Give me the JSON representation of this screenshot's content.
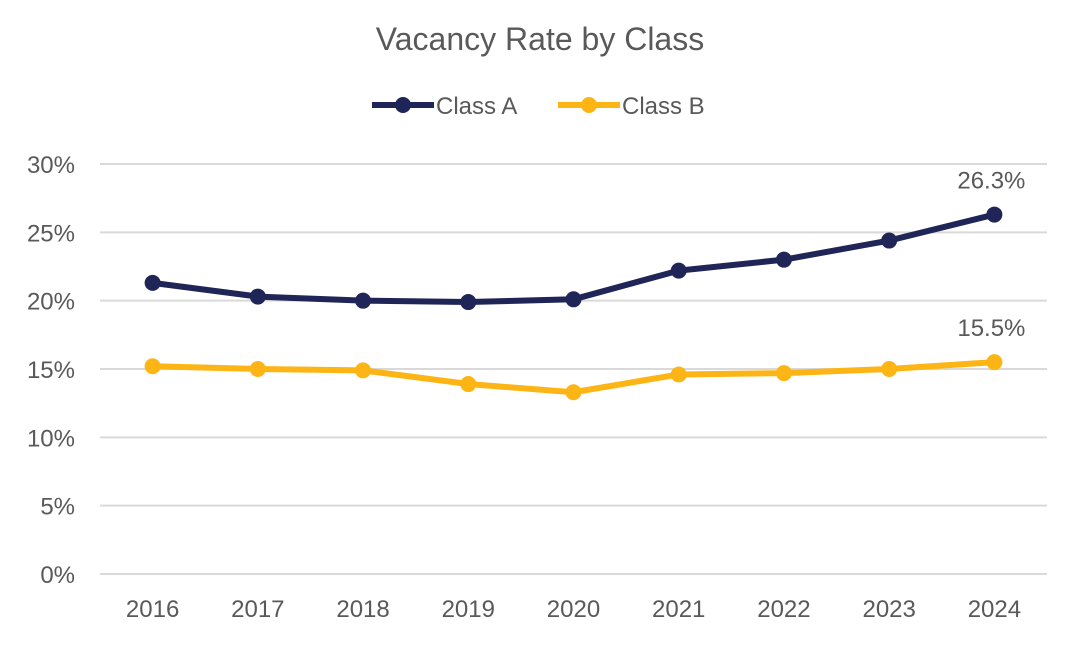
{
  "chart_data": {
    "type": "line",
    "title": "Vacancy Rate by Class",
    "xlabel": "",
    "ylabel": "",
    "categories": [
      "2016",
      "2017",
      "2018",
      "2019",
      "2020",
      "2021",
      "2022",
      "2023",
      "2024"
    ],
    "ylim": [
      0,
      30
    ],
    "yticks": [
      "0%",
      "5%",
      "10%",
      "15%",
      "20%",
      "25%",
      "30%"
    ],
    "grid": true,
    "legend": "top",
    "series": [
      {
        "name": "Class A",
        "color": "#1f2557",
        "values": [
          21.3,
          20.3,
          20.0,
          19.9,
          20.1,
          22.2,
          23.0,
          24.4,
          26.3
        ],
        "end_label": "26.3%"
      },
      {
        "name": "Class B",
        "color": "#fdb515",
        "values": [
          15.2,
          15.0,
          14.9,
          13.9,
          13.3,
          14.6,
          14.7,
          15.0,
          15.5
        ],
        "end_label": "15.5%"
      }
    ]
  }
}
